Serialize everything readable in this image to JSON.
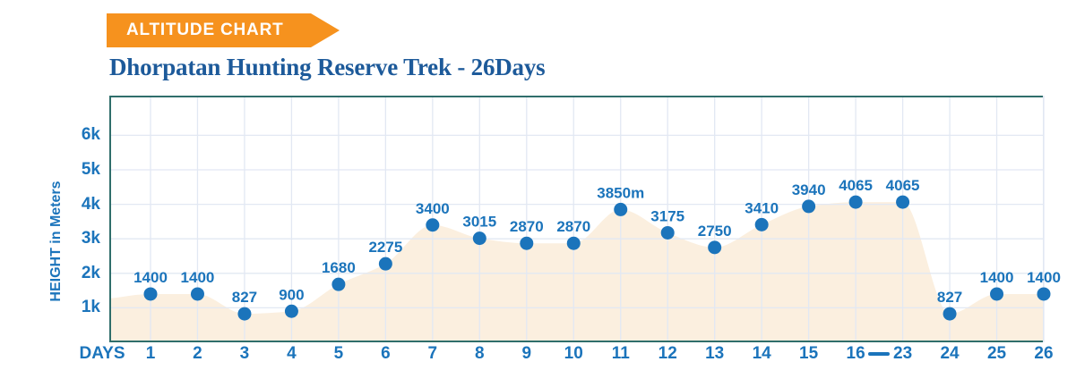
{
  "banner": {
    "label": "ALTITUDE CHART",
    "bg_color": "#F6921E",
    "text_color": "#FFFFFF"
  },
  "title": {
    "text": "Dhorpatan Hunting Reserve Trek - 26Days",
    "color": "#1D5A9A"
  },
  "chart_data": {
    "type": "area",
    "title": "Dhorpatan Hunting Reserve Trek - 26Days",
    "xlabel": "DAYS",
    "ylabel": "HEIGHT in Meters",
    "x_tick_labels": [
      "1",
      "2",
      "3",
      "4",
      "5",
      "6",
      "7",
      "8",
      "9",
      "10",
      "11",
      "12",
      "13",
      "14",
      "15",
      "16",
      "23",
      "24",
      "25",
      "26"
    ],
    "x_range_dash": {
      "between": [
        "16",
        "23"
      ],
      "glyph": "—"
    },
    "y_tick_labels": [
      "6k",
      "5k",
      "4k",
      "3k",
      "2k",
      "1k"
    ],
    "y_tick_values": [
      6000,
      5000,
      4000,
      3000,
      2000,
      1000
    ],
    "ylim": [
      0,
      7150
    ],
    "values": [
      1400,
      1400,
      827,
      900,
      1680,
      2275,
      3400,
      3015,
      2870,
      2870,
      3850,
      3175,
      2750,
      3410,
      3940,
      4065,
      4065,
      827,
      1400,
      1400
    ],
    "point_labels": [
      "1400",
      "1400",
      "827",
      "900",
      "1680",
      "2275",
      "3400",
      "3015",
      "2870",
      "2870",
      "3850m",
      "3175",
      "2750",
      "3410",
      "3940",
      "4065",
      "4065",
      "827",
      "1400",
      "1400"
    ],
    "grid": true,
    "legend": "none",
    "colors": {
      "point": "#1B74BB",
      "value_label": "#1B74BB",
      "axis_text": "#1B74BB",
      "area_fill": "#FBEFDF",
      "gridline": "#E2E8F3",
      "plot_border": "#2F6E6B"
    }
  }
}
